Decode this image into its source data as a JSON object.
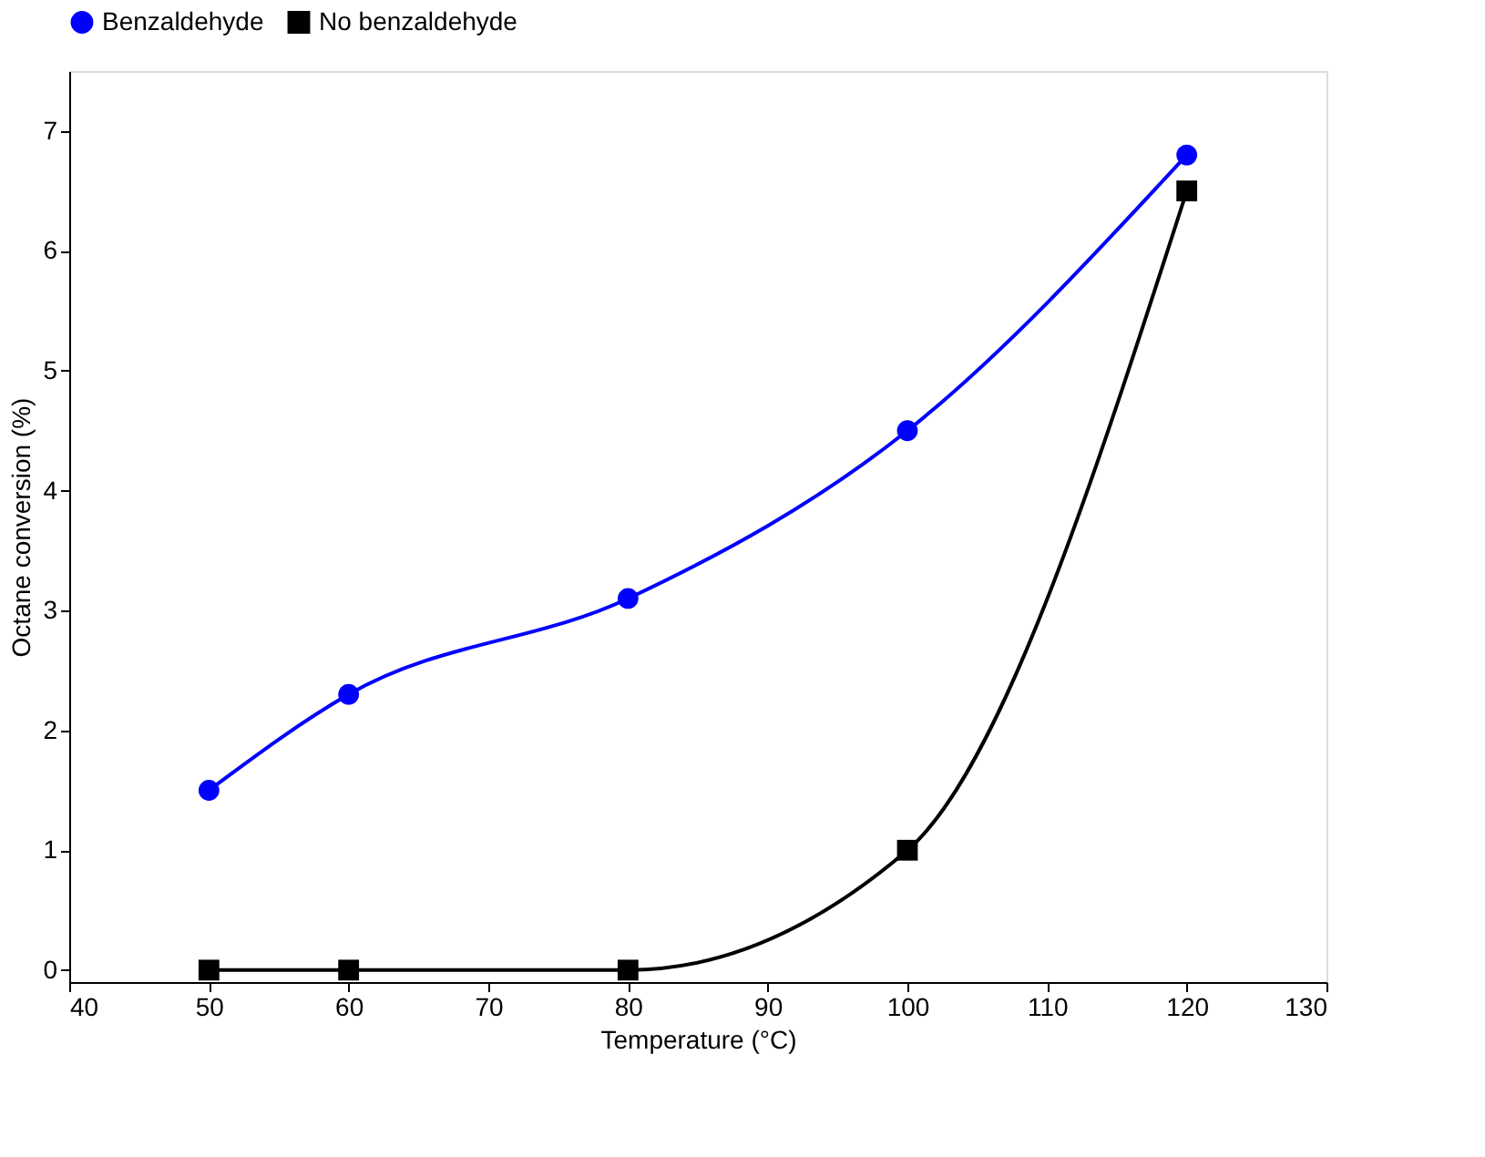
{
  "chart_data": {
    "type": "line",
    "xlabel": "Temperature (°C)",
    "ylabel": "Octane conversion (%)",
    "x": [
      50,
      60,
      80,
      100,
      120
    ],
    "series": [
      {
        "name": "Benzaldehyde",
        "color": "#0000ff",
        "marker": "circle",
        "values": [
          1.5,
          2.3,
          3.1,
          4.5,
          6.8
        ]
      },
      {
        "name": "No benzaldehyde",
        "color": "#000000",
        "marker": "square",
        "values": [
          0,
          0,
          0,
          1,
          6.5
        ]
      }
    ],
    "xlim": [
      40,
      130
    ],
    "xticks": [
      40,
      50,
      60,
      70,
      80,
      90,
      100,
      110,
      120,
      130
    ],
    "ylim": [
      -0.1,
      7.5
    ],
    "yticks": [
      0,
      1,
      2,
      3,
      4,
      5,
      6,
      7
    ],
    "grid": false,
    "legend": "top",
    "line_style": "solid"
  }
}
